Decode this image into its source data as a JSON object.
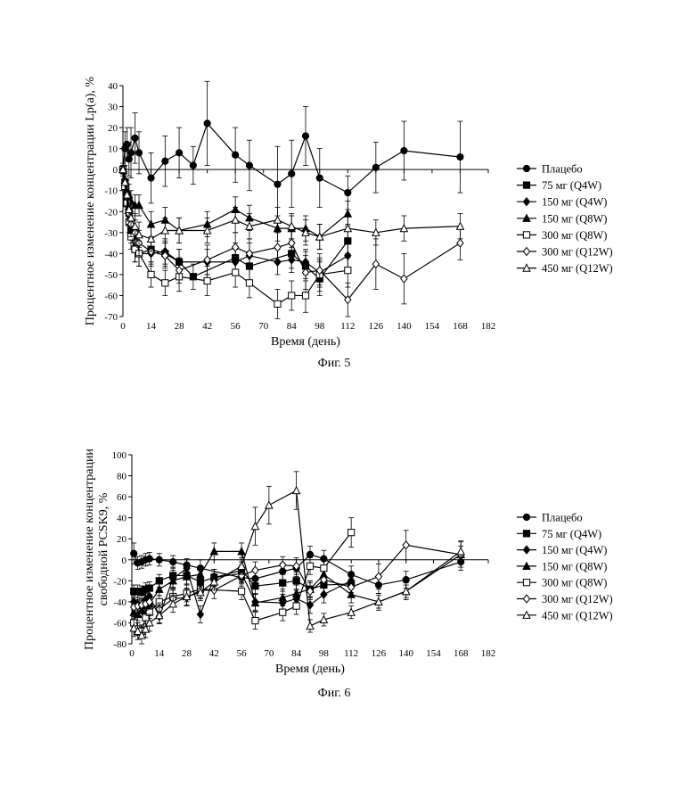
{
  "chart_data": [
    {
      "type": "line",
      "caption": "Фиг. 5",
      "xlabel": "Время (день)",
      "ylabel": "Процентное изменение концентрации Lp(a), %",
      "xlim": [
        0,
        182
      ],
      "ylim": [
        -70,
        40
      ],
      "xticks": [
        0,
        14,
        28,
        42,
        56,
        70,
        84,
        98,
        112,
        126,
        140,
        154,
        168,
        182
      ],
      "yticks": [
        -70,
        -60,
        -50,
        -40,
        -30,
        -20,
        -10,
        0,
        10,
        20,
        30,
        40
      ],
      "legend_position": "right",
      "series": [
        {
          "name": "Плацебо",
          "marker": "circle",
          "x": [
            0,
            1,
            2,
            3,
            4,
            6,
            8,
            14,
            21,
            28,
            35,
            42,
            56,
            63,
            77,
            84,
            91,
            98,
            112,
            126,
            140,
            168
          ],
          "y": [
            0,
            10,
            12,
            5,
            8,
            15,
            8,
            -4,
            4,
            8,
            2,
            22,
            7,
            2,
            -7,
            -2,
            16,
            -4,
            -11,
            1,
            9,
            6
          ],
          "err": [
            3,
            8,
            8,
            8,
            12,
            12,
            10,
            12,
            12,
            12,
            9,
            20,
            13,
            12,
            18,
            16,
            14,
            14,
            8,
            12,
            14,
            17
          ]
        },
        {
          "name": "75 мг (Q4W)",
          "marker": "square",
          "x": [
            0,
            1,
            2,
            3,
            4,
            6,
            8,
            14,
            21,
            28,
            35,
            56,
            63,
            84,
            91,
            98,
            112
          ],
          "y": [
            0,
            -6,
            -12,
            -20,
            -29,
            -38,
            -40,
            -38,
            -40,
            -44,
            -51,
            -42,
            -46,
            -40,
            -46,
            -52,
            -34
          ],
          "err": [
            2,
            4,
            5,
            5,
            6,
            6,
            6,
            6,
            6,
            6,
            6,
            7,
            7,
            7,
            7,
            8,
            8
          ]
        },
        {
          "name": "150 мг (Q4W)",
          "marker": "diamond",
          "x": [
            0,
            1,
            2,
            3,
            4,
            6,
            8,
            14,
            21,
            28,
            42,
            56,
            63,
            77,
            84,
            91,
            98,
            112
          ],
          "y": [
            0,
            -7,
            -14,
            -22,
            -26,
            -30,
            -40,
            -40,
            -39,
            -44,
            -44,
            -44,
            -41,
            -44,
            -43,
            -44,
            -49,
            -41
          ],
          "err": [
            2,
            4,
            5,
            5,
            6,
            6,
            6,
            6,
            6,
            6,
            6,
            6,
            6,
            6,
            6,
            6,
            6,
            6
          ]
        },
        {
          "name": "150 мг (Q8W)",
          "marker": "triangle",
          "x": [
            0,
            1,
            2,
            3,
            4,
            6,
            8,
            14,
            21,
            28,
            42,
            56,
            63,
            77,
            84,
            91,
            98,
            112
          ],
          "y": [
            0,
            -5,
            -10,
            -12,
            -15,
            -17,
            -17,
            -26,
            -24,
            -29,
            -26,
            -19,
            -23,
            -28,
            -28,
            -28,
            -32,
            -21
          ],
          "err": [
            2,
            4,
            5,
            5,
            5,
            5,
            5,
            6,
            6,
            6,
            6,
            6,
            6,
            6,
            6,
            6,
            6,
            6
          ]
        },
        {
          "name": "300 мг (Q8W)",
          "marker": "square-open",
          "x": [
            0,
            1,
            2,
            3,
            4,
            6,
            8,
            14,
            21,
            28,
            42,
            56,
            63,
            77,
            84,
            91,
            98,
            112
          ],
          "y": [
            0,
            -8,
            -16,
            -25,
            -32,
            -38,
            -40,
            -50,
            -54,
            -51,
            -53,
            -49,
            -54,
            -64,
            -60,
            -60,
            -50,
            -48
          ],
          "err": [
            2,
            4,
            5,
            5,
            6,
            6,
            6,
            6,
            6,
            7,
            7,
            7,
            7,
            7,
            7,
            8,
            8,
            8
          ]
        },
        {
          "name": "300 мг (Q12W)",
          "marker": "diamond-open",
          "x": [
            0,
            1,
            2,
            3,
            4,
            6,
            8,
            14,
            21,
            28,
            42,
            56,
            63,
            77,
            84,
            91,
            98,
            112,
            126,
            140,
            168
          ],
          "y": [
            0,
            -6,
            -13,
            -21,
            -26,
            -30,
            -35,
            -39,
            -41,
            -48,
            -43,
            -37,
            -40,
            -37,
            -35,
            -49,
            -48,
            -62,
            -45,
            -52,
            -35
          ],
          "err": [
            2,
            4,
            5,
            5,
            6,
            6,
            6,
            6,
            6,
            6,
            7,
            7,
            7,
            7,
            7,
            8,
            8,
            8,
            12,
            12,
            8
          ]
        },
        {
          "name": "450 мг (Q12W)",
          "marker": "triangle-open",
          "x": [
            0,
            1,
            2,
            3,
            4,
            6,
            8,
            14,
            21,
            28,
            42,
            56,
            63,
            77,
            84,
            91,
            98,
            112,
            126,
            140,
            168
          ],
          "y": [
            0,
            -6,
            -12,
            -19,
            -23,
            -27,
            -31,
            -33,
            -29,
            -29,
            -29,
            -24,
            -27,
            -24,
            -27,
            -30,
            -32,
            -28,
            -30,
            -28,
            -27
          ],
          "err": [
            2,
            4,
            5,
            5,
            6,
            6,
            6,
            6,
            6,
            6,
            6,
            6,
            6,
            6,
            6,
            6,
            6,
            6,
            6,
            6,
            6
          ]
        }
      ]
    },
    {
      "type": "line",
      "caption": "Фиг. 6",
      "xlabel": "Время (день)",
      "ylabel": "Процентное изменение концентрации свободной PCSK9, %",
      "ylabel_lines": [
        "Процентное изменение концентрации",
        "свободной PCSK9, %"
      ],
      "xlim": [
        0,
        182
      ],
      "ylim": [
        -80,
        100
      ],
      "xticks": [
        0,
        14,
        28,
        42,
        56,
        70,
        84,
        98,
        112,
        126,
        140,
        154,
        168,
        182
      ],
      "yticks": [
        -80,
        -60,
        -40,
        -20,
        0,
        20,
        40,
        60,
        80,
        100
      ],
      "legend_position": "right",
      "series": [
        {
          "name": "Плацебо",
          "marker": "circle",
          "x": [
            1,
            3,
            5,
            7,
            9,
            14,
            21,
            28,
            35,
            56,
            63,
            77,
            84,
            91,
            98,
            112,
            126,
            140,
            168
          ],
          "y": [
            6,
            -3,
            -2,
            0,
            1,
            0,
            -2,
            -5,
            -8,
            -17,
            -18,
            -11,
            -8,
            5,
            1,
            -14,
            -24,
            -19,
            -2
          ],
          "err": [
            10,
            6,
            6,
            6,
            6,
            6,
            6,
            6,
            8,
            8,
            8,
            8,
            8,
            8,
            8,
            8,
            8,
            8,
            8
          ]
        },
        {
          "name": "75 мг (Q4W)",
          "marker": "square",
          "x": [
            1,
            3,
            5,
            7,
            9,
            14,
            21,
            28,
            35,
            42,
            56,
            63,
            77,
            84,
            91,
            98,
            112
          ],
          "y": [
            -30,
            -30,
            -31,
            -28,
            -27,
            -20,
            -15,
            -15,
            -21,
            -17,
            -10,
            -25,
            -22,
            -20,
            -28,
            -24,
            -23
          ],
          "err": [
            6,
            6,
            6,
            6,
            6,
            6,
            8,
            8,
            8,
            8,
            8,
            8,
            8,
            8,
            8,
            8,
            8
          ]
        },
        {
          "name": "150 мг (Q4W)",
          "marker": "diamond",
          "x": [
            1,
            3,
            5,
            7,
            9,
            14,
            21,
            28,
            35,
            42,
            56,
            63,
            77,
            84,
            91,
            98,
            112
          ],
          "y": [
            -40,
            -42,
            -45,
            -38,
            -35,
            -54,
            -18,
            -8,
            -52,
            -17,
            -13,
            -40,
            -41,
            -37,
            -43,
            -33,
            -20
          ],
          "err": [
            6,
            6,
            6,
            6,
            6,
            6,
            8,
            8,
            8,
            8,
            8,
            8,
            8,
            8,
            8,
            8,
            8
          ]
        },
        {
          "name": "150 мг (Q8W)",
          "marker": "triangle",
          "x": [
            1,
            3,
            5,
            7,
            9,
            14,
            21,
            28,
            35,
            42,
            56,
            63,
            77,
            84,
            91,
            98,
            112,
            126,
            140,
            168
          ],
          "y": [
            -50,
            -52,
            -48,
            -44,
            -42,
            -28,
            -20,
            -16,
            -14,
            8,
            8,
            -41,
            -36,
            -32,
            -28,
            -14,
            -33,
            -40,
            -30,
            5
          ],
          "err": [
            6,
            6,
            6,
            6,
            6,
            6,
            8,
            8,
            8,
            8,
            8,
            8,
            8,
            8,
            8,
            8,
            8,
            8,
            8,
            8
          ]
        },
        {
          "name": "300 мг (Q8W)",
          "marker": "square-open",
          "x": [
            1,
            3,
            5,
            7,
            9,
            14,
            21,
            28,
            35,
            56,
            63,
            77,
            84,
            91,
            98,
            112
          ],
          "y": [
            -60,
            -66,
            -68,
            -55,
            -50,
            -40,
            -35,
            -32,
            -28,
            -30,
            -58,
            -50,
            -44,
            -6,
            -8,
            26
          ],
          "err": [
            6,
            6,
            6,
            6,
            6,
            6,
            8,
            8,
            8,
            8,
            8,
            8,
            8,
            8,
            8,
            14
          ]
        },
        {
          "name": "300 мг (Q12W)",
          "marker": "diamond-open",
          "x": [
            1,
            3,
            5,
            7,
            9,
            14,
            21,
            28,
            35,
            42,
            56,
            63,
            77,
            84,
            91,
            98,
            112,
            126,
            140,
            168
          ],
          "y": [
            -45,
            -44,
            -43,
            -42,
            -40,
            -47,
            -37,
            -36,
            -29,
            -29,
            -15,
            -10,
            -5,
            -6,
            -30,
            -19,
            -26,
            -16,
            14,
            5
          ],
          "err": [
            6,
            6,
            6,
            6,
            6,
            6,
            8,
            8,
            8,
            8,
            8,
            8,
            8,
            8,
            8,
            8,
            8,
            12,
            14,
            12
          ]
        },
        {
          "name": "450 мг (Q12W)",
          "marker": "triangle-open",
          "x": [
            1,
            3,
            5,
            7,
            9,
            14,
            21,
            28,
            35,
            42,
            56,
            63,
            70,
            84,
            91,
            98,
            112,
            126,
            140,
            168
          ],
          "y": [
            -65,
            -68,
            -72,
            -66,
            -60,
            -53,
            -42,
            -35,
            -31,
            -21,
            -6,
            32,
            52,
            66,
            -63,
            -57,
            -50,
            -40,
            -30,
            8
          ],
          "err": [
            8,
            8,
            8,
            8,
            8,
            8,
            8,
            8,
            8,
            8,
            8,
            18,
            18,
            18,
            6,
            6,
            6,
            6,
            6,
            10
          ]
        }
      ]
    }
  ]
}
